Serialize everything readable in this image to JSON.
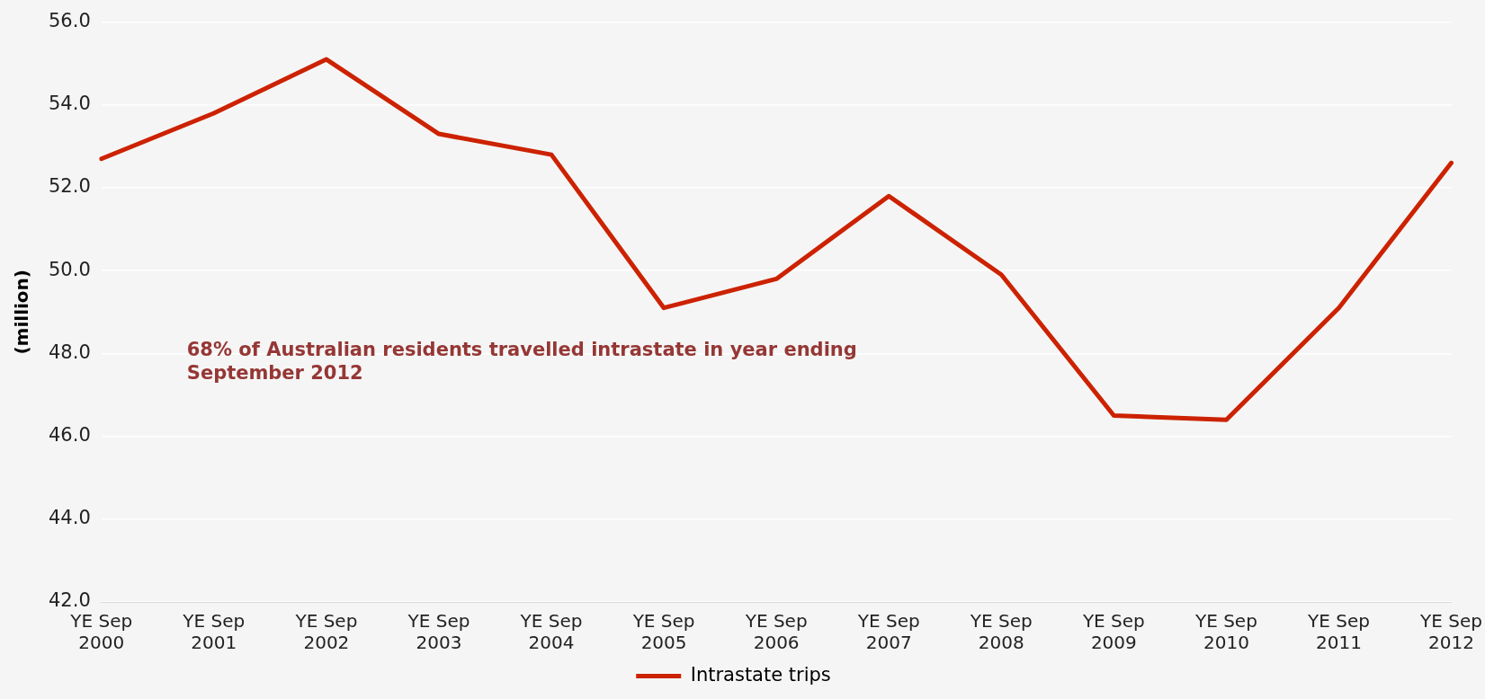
{
  "chart_data": {
    "type": "line",
    "ylabel": "(million)",
    "categories": [
      "YE Sep 2000",
      "YE Sep 2001",
      "YE Sep 2002",
      "YE Sep 2003",
      "YE Sep 2004",
      "YE Sep 2005",
      "YE Sep 2006",
      "YE Sep 2007",
      "YE Sep 2008",
      "YE Sep 2009",
      "YE Sep 2010",
      "YE Sep 2011",
      "YE Sep 2012"
    ],
    "series": [
      {
        "name": "Intrastate trips",
        "color": "#cc2200",
        "values": [
          52.7,
          53.8,
          55.1,
          53.3,
          52.8,
          49.1,
          49.8,
          51.8,
          49.9,
          46.5,
          46.4,
          49.1,
          52.6
        ]
      }
    ],
    "ylim": [
      42,
      56
    ],
    "yticks": [
      {
        "value": 42,
        "label": "42.0"
      },
      {
        "value": 44,
        "label": "44.0"
      },
      {
        "value": 46,
        "label": "46.0"
      },
      {
        "value": 48,
        "label": "48.0"
      },
      {
        "value": 50,
        "label": "50.0"
      },
      {
        "value": 52,
        "label": "52.0"
      },
      {
        "value": 54,
        "label": "54.0"
      },
      {
        "value": 56,
        "label": "56.0"
      }
    ],
    "annotations": [
      "68% of Australian residents travelled intrastate in year ending\nSeptember 2012"
    ],
    "grid": "y",
    "legend": "bottom",
    "marker": "none",
    "line_style": "solid"
  }
}
